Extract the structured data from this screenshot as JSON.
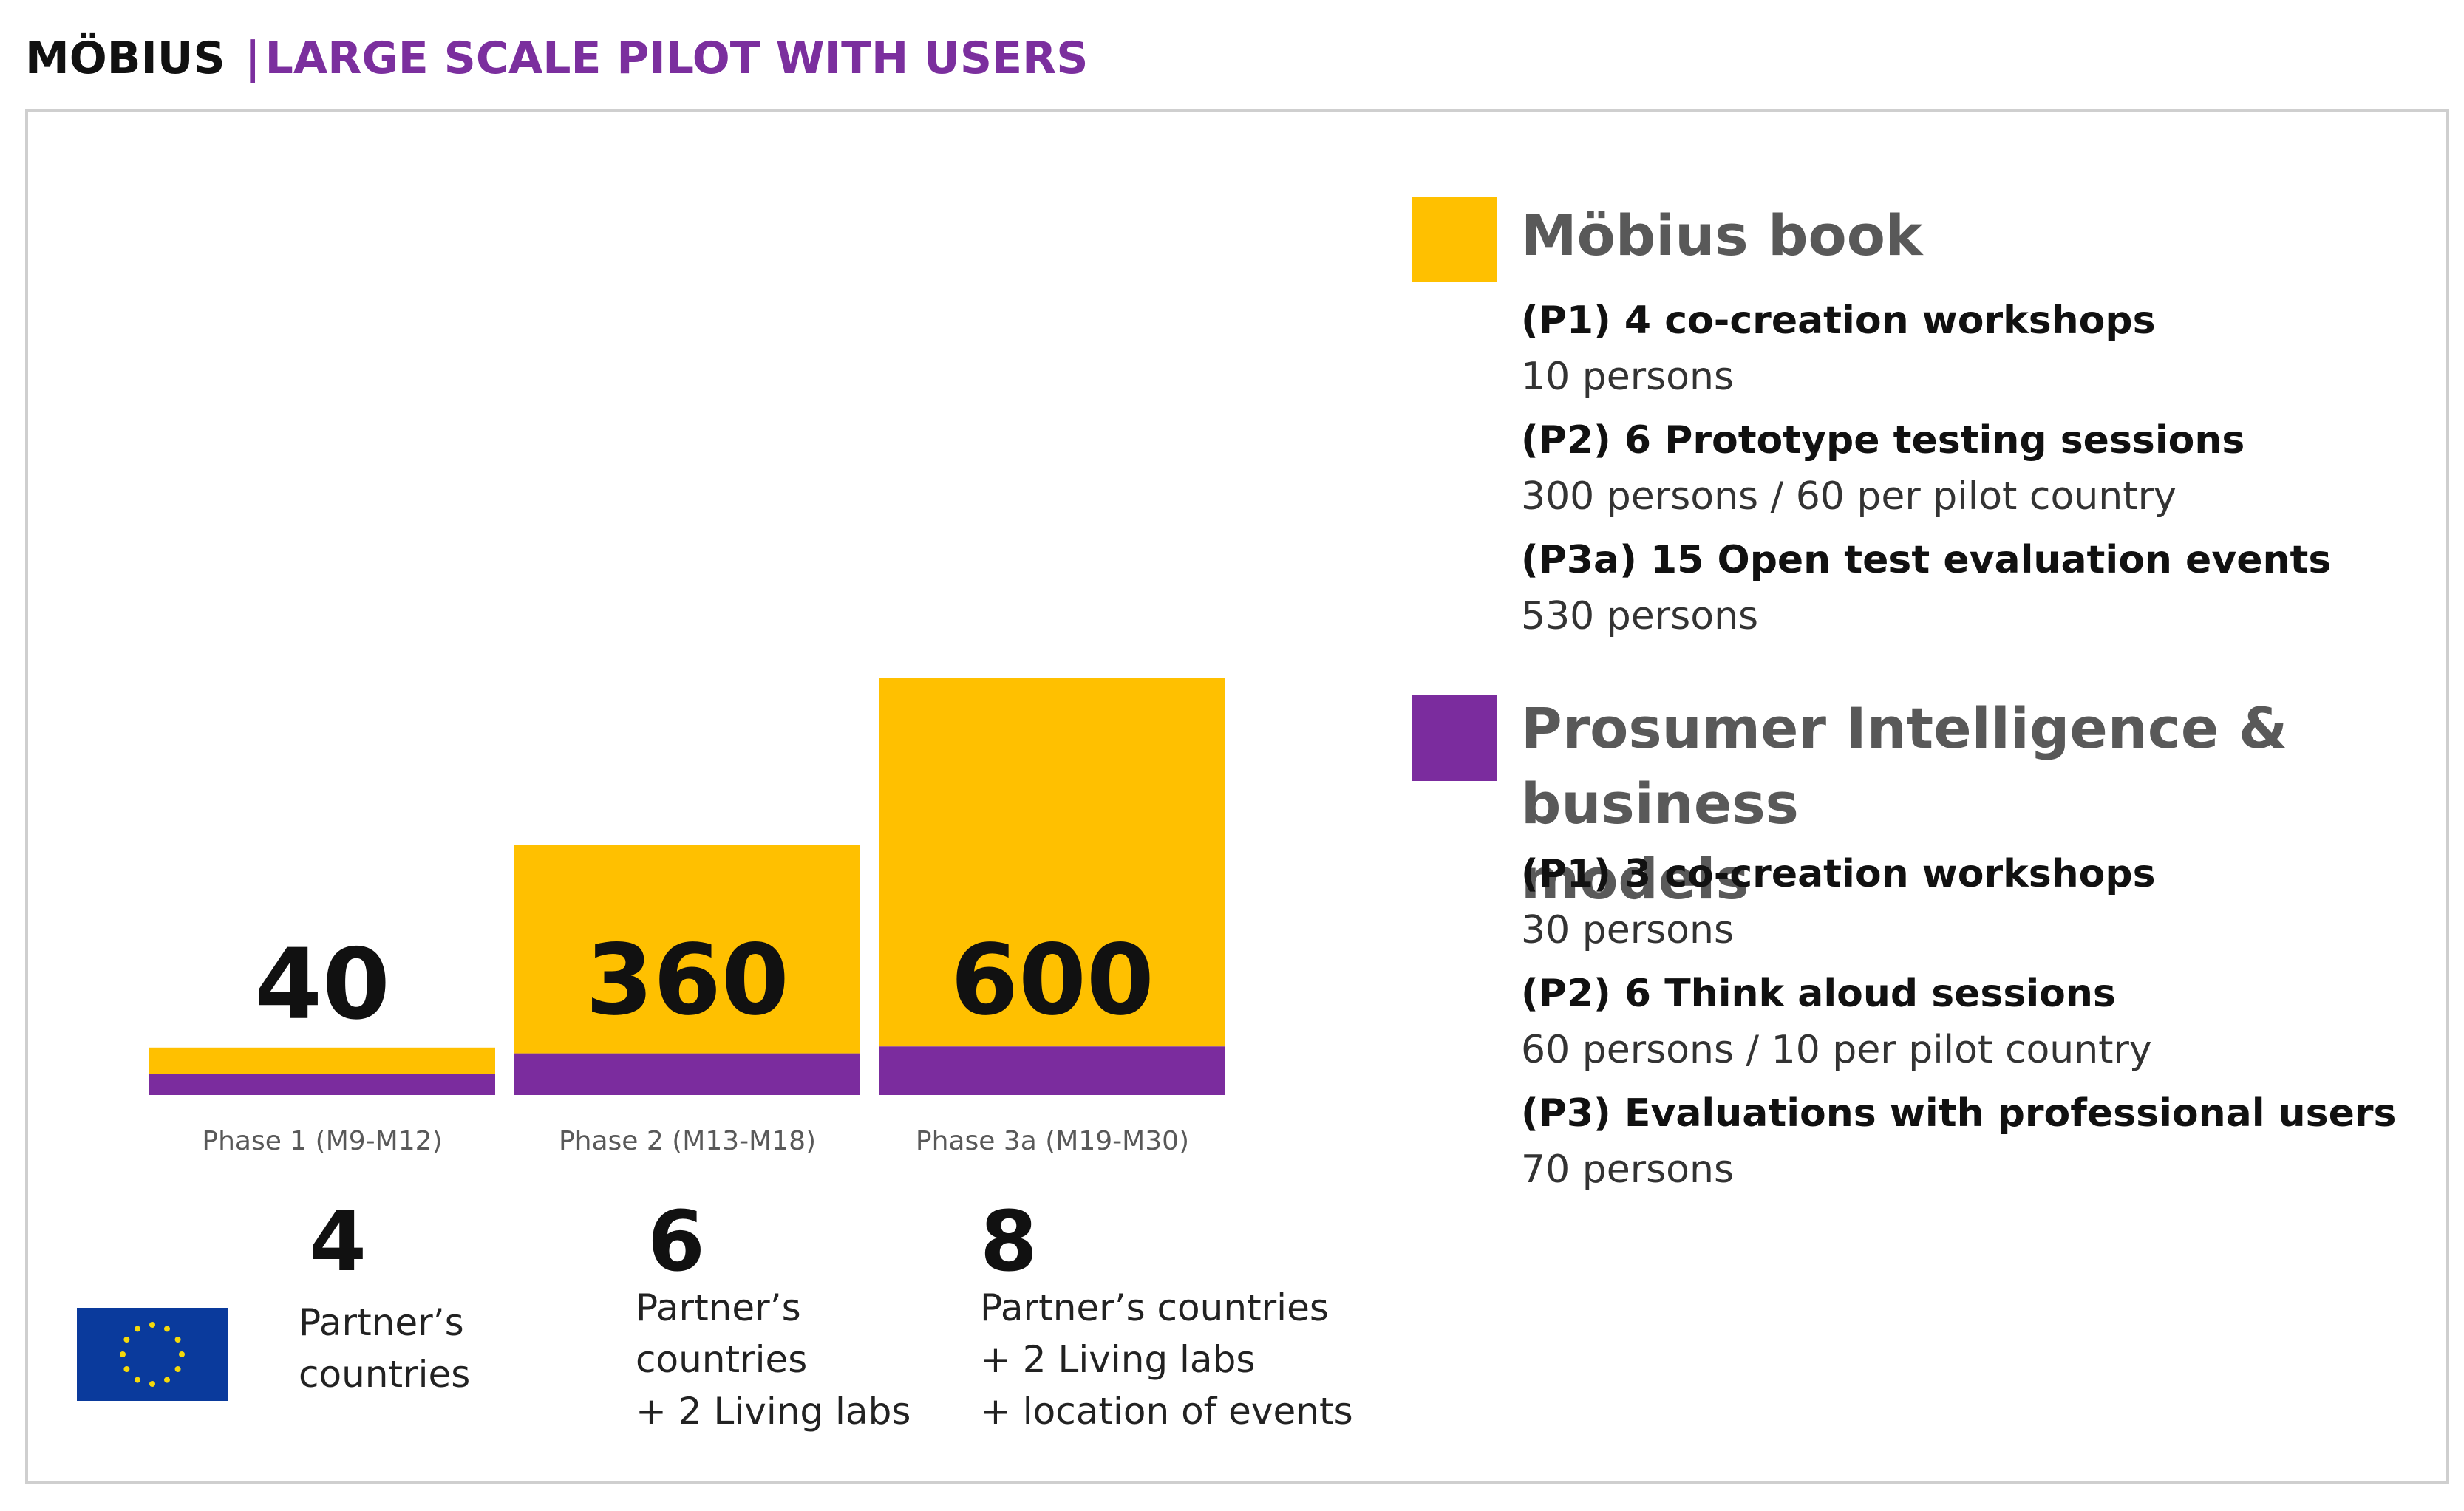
{
  "header": {
    "brand": "MÖBIUS",
    "separator": "|",
    "subtitle": "LARGE SCALE PILOT WITH USERS"
  },
  "colors": {
    "mobius_book": "#FFC000",
    "prosumer": "#7B2C9E",
    "accent": "#7B2F9E"
  },
  "chart_data": {
    "type": "bar",
    "stacked": true,
    "categories": [
      "Phase 1 (M9-M12)",
      "Phase 2 (M13-M18)",
      "Phase 3a (M19-M30)"
    ],
    "totals": [
      "40",
      "360",
      "600"
    ],
    "series": [
      {
        "name": "Prosumer Intelligence & business models",
        "color": "#7B2C9E",
        "values": [
          30,
          60,
          70
        ]
      },
      {
        "name": "Möbius book",
        "color": "#FFC000",
        "values": [
          10,
          300,
          530
        ]
      }
    ],
    "ylim": [
      0,
      600
    ],
    "title": "",
    "xlabel": "",
    "ylabel": ""
  },
  "stats": [
    {
      "number": "4",
      "lines": [
        "Partner’s",
        "countries"
      ]
    },
    {
      "number": "6",
      "lines": [
        "Partner’s",
        "countries",
        "+ 2 Living labs"
      ]
    },
    {
      "number": "8",
      "lines": [
        "Partner’s countries",
        "+ 2 Living labs",
        "+ location of events"
      ]
    }
  ],
  "legend": {
    "mobius_book": {
      "title": "Möbius book",
      "items": [
        {
          "title": "(P1) 4 co-creation workshops",
          "sub": "10 persons"
        },
        {
          "title": "(P2) 6 Prototype testing sessions",
          "sub": "300 persons / 60 per pilot country"
        },
        {
          "title": "(P3a) 15 Open test evaluation events",
          "sub": "530 persons"
        }
      ]
    },
    "prosumer": {
      "title_line1": "Prosumer Intelligence & business",
      "title_line2": "models",
      "items": [
        {
          "title": "(P1) 3 co-creation workshops",
          "sub": "30 persons"
        },
        {
          "title": "(P2) 6 Think aloud sessions",
          "sub": "60 persons / 10 per pilot country"
        },
        {
          "title": "(P3) Evaluations with professional users",
          "sub": "70 persons"
        }
      ]
    }
  },
  "flag": {
    "name": "eu-flag"
  }
}
